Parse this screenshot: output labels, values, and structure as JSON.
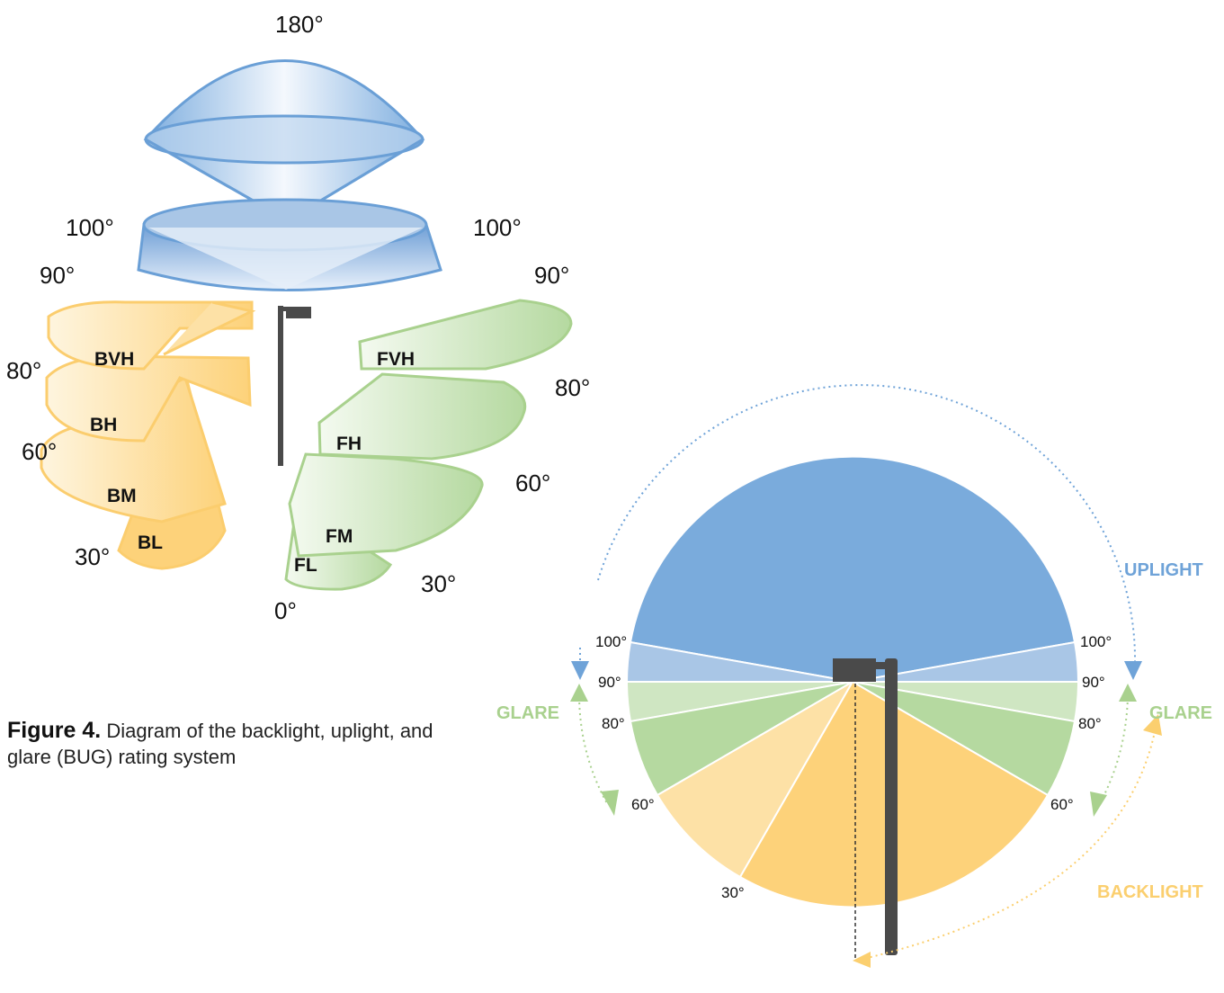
{
  "caption": {
    "figure_label": "Figure 4.",
    "text": "Diagram of the backlight, uplight, and glare (BUG) rating system"
  },
  "diagram3d": {
    "degrees": {
      "top": "180°",
      "left_100": "100°",
      "right_100": "100°",
      "left_90": "90°",
      "right_90": "90°",
      "left_80": "80°",
      "right_80": "80°",
      "left_60": "60°",
      "right_60": "60°",
      "left_30": "30°",
      "right_30": "30°",
      "bottom": "0°"
    },
    "back_zones": [
      "BVH",
      "BH",
      "BM",
      "BL"
    ],
    "front_zones": [
      "FVH",
      "FH",
      "FM",
      "FL"
    ]
  },
  "diagram2d": {
    "left_degrees": {
      "d100": "100°",
      "d90": "90°",
      "d80": "80°",
      "d60": "60°",
      "d30": "30°"
    },
    "right_degrees": {
      "d100": "100°",
      "d90": "90°",
      "d80": "80°",
      "d60": "60°"
    },
    "labels": {
      "uplight": "UPLIGHT",
      "glare_left": "GLARE",
      "glare_right": "GLARE",
      "backlight": "BACKLIGHT"
    }
  },
  "colors": {
    "uplight": "#7aabdc",
    "uplight_light": "#a9c6e6",
    "glare_light": "#cfe6c2",
    "glare": "#b5d9a0",
    "backlight_light": "#fde1a6",
    "backlight": "#fdd27a",
    "pole": "#4a4a4a",
    "blue_label": "#6fa3d8",
    "green_label": "#a9d18e",
    "orange_label": "#fbcf6f"
  }
}
